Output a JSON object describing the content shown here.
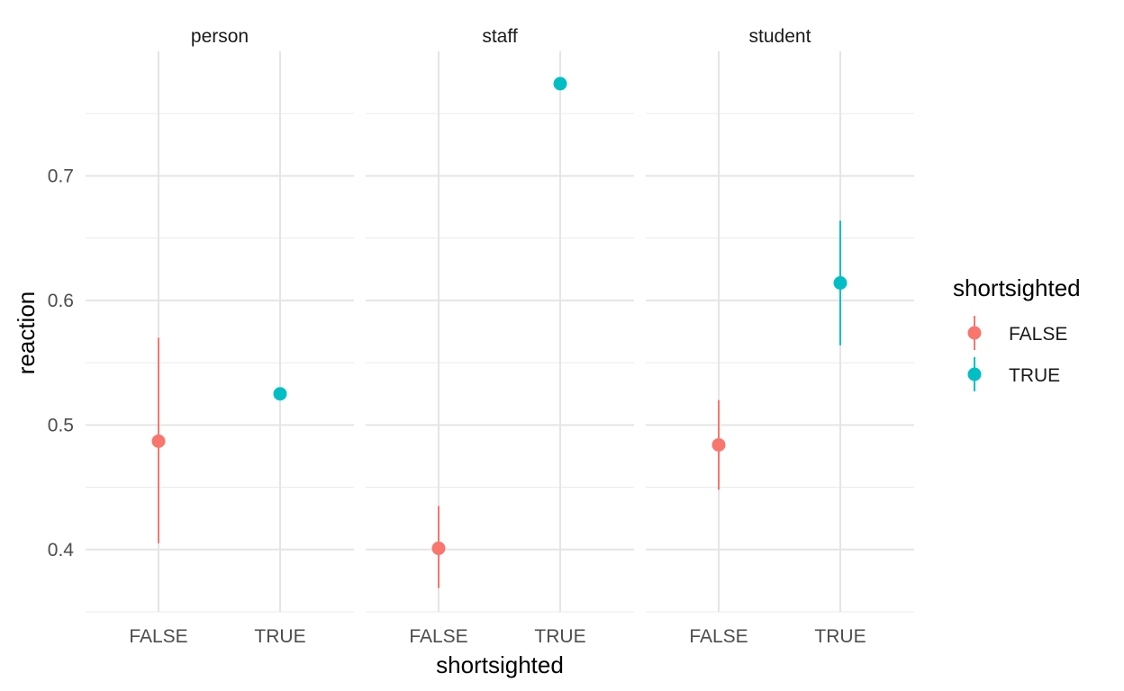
{
  "chart_data": {
    "type": "scatter",
    "title": "",
    "xlabel": "shortsighted",
    "ylabel": "reaction",
    "ylim": [
      0.35,
      0.8
    ],
    "yticks": [
      0.4,
      0.5,
      0.6,
      0.7
    ],
    "ytick_labels": [
      "0.4",
      "0.5",
      "0.6",
      "0.7"
    ],
    "categories": [
      "FALSE",
      "TRUE"
    ],
    "grid": true,
    "facets": [
      "person",
      "staff",
      "student"
    ],
    "legend": {
      "title": "shortsighted",
      "position": "right",
      "entries": [
        {
          "label": "FALSE",
          "color": "#F8766D"
        },
        {
          "label": "TRUE",
          "color": "#00BFC4"
        }
      ]
    },
    "series": [
      {
        "name": "FALSE",
        "color": "#F8766D",
        "points": [
          {
            "facet": "person",
            "x": "FALSE",
            "y": 0.487,
            "ymin": 0.405,
            "ymax": 0.57
          },
          {
            "facet": "staff",
            "x": "FALSE",
            "y": 0.401,
            "ymin": 0.369,
            "ymax": 0.435
          },
          {
            "facet": "student",
            "x": "FALSE",
            "y": 0.484,
            "ymin": 0.448,
            "ymax": 0.52
          }
        ]
      },
      {
        "name": "TRUE",
        "color": "#00BFC4",
        "points": [
          {
            "facet": "person",
            "x": "TRUE",
            "y": 0.525,
            "ymin": 0.525,
            "ymax": 0.525
          },
          {
            "facet": "staff",
            "x": "TRUE",
            "y": 0.774,
            "ymin": 0.774,
            "ymax": 0.774
          },
          {
            "facet": "student",
            "x": "TRUE",
            "y": 0.614,
            "ymin": 0.564,
            "ymax": 0.664
          }
        ]
      }
    ]
  }
}
